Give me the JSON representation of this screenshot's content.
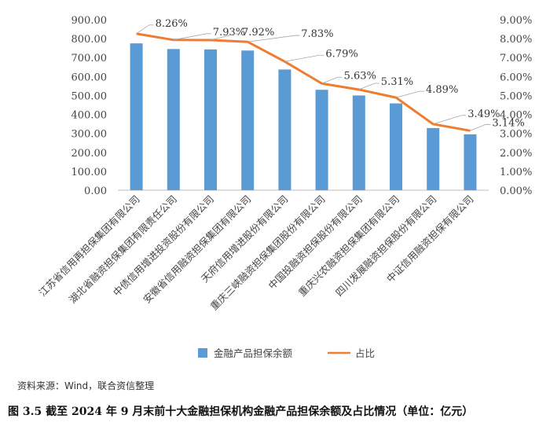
{
  "chart_data": {
    "type": "bar",
    "categories": [
      "江苏省信用再担保集团有限公司",
      "湖北省融资担保集团有限责任公司",
      "中债信用增进投资股份有限公司",
      "安徽省信用融资担保集团有限公司",
      "天府信用增进股份有限公司",
      "重庆三峡融资担保集团股份有限公司",
      "中国投融资担保股份有限公司",
      "重庆兴农融资担保集团有限公司",
      "四川发展融资担保股份有限公司",
      "中证信用融资担保有限公司"
    ],
    "series": [
      {
        "name": "金融产品担保余额",
        "type": "bar",
        "axis": "left",
        "values": [
          775,
          745,
          743,
          737,
          637,
          530,
          500,
          458,
          328,
          295
        ],
        "color": "#5B9BD5"
      },
      {
        "name": "占比",
        "type": "line",
        "axis": "right",
        "values": [
          8.26,
          7.93,
          7.92,
          7.83,
          6.79,
          5.63,
          5.31,
          4.89,
          3.49,
          3.14
        ],
        "labels": [
          "8.26%",
          "7.93%",
          "7.92%",
          "7.83%",
          "6.79%",
          "5.63%",
          "5.31%",
          "4.89%",
          "3.49%",
          "3.14%"
        ],
        "color": "#ED7D31"
      }
    ],
    "ylim": [
      0,
      900
    ],
    "yticks": [
      "0.00",
      "100.00",
      "200.00",
      "300.00",
      "400.00",
      "500.00",
      "600.00",
      "700.00",
      "800.00",
      "900.00"
    ],
    "y2lim": [
      0,
      9
    ],
    "y2ticks": [
      "0.00%",
      "1.00%",
      "2.00%",
      "3.00%",
      "4.00%",
      "5.00%",
      "6.00%",
      "7.00%",
      "8.00%",
      "9.00%"
    ],
    "grid": false,
    "legend": "bottom"
  },
  "source": "资料来源：Wind，联合资信整理",
  "caption": "图 3.5    截至 2024 年 9 月末前十大金融担保机构金融产品担保余额及占比情况（单位：亿元）"
}
